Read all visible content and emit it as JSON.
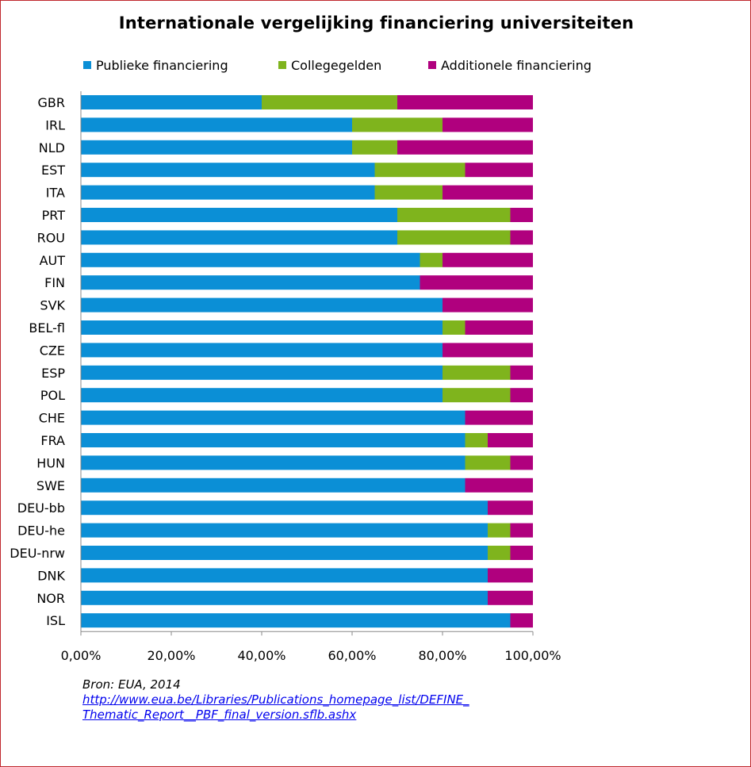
{
  "chart_data": {
    "type": "bar",
    "orientation": "horizontal",
    "stacked": true,
    "title": "Internationale vergelijking financiering universiteiten",
    "categories": [
      "GBR",
      "IRL",
      "NLD",
      "EST",
      "ITA",
      "PRT",
      "ROU",
      "AUT",
      "FIN",
      "SVK",
      "BEL-fl",
      "CZE",
      "ESP",
      "POL",
      "CHE",
      "FRA",
      "HUN",
      "SWE",
      "DEU-bb",
      "DEU-he",
      "DEU-nrw",
      "DNK",
      "NOR",
      "ISL"
    ],
    "series": [
      {
        "name": "Publieke financiering",
        "color": "#0b8fd6",
        "values": [
          40,
          60,
          60,
          65,
          65,
          70,
          70,
          75,
          75,
          80,
          80,
          80,
          80,
          80,
          85,
          85,
          85,
          85,
          90,
          90,
          90,
          90,
          90,
          95
        ]
      },
      {
        "name": "Collegegelden",
        "color": "#7fb41d",
        "values": [
          30,
          20,
          10,
          20,
          15,
          25,
          25,
          5,
          0,
          0,
          5,
          0,
          15,
          15,
          0,
          5,
          10,
          0,
          0,
          5,
          5,
          0,
          0,
          0
        ]
      },
      {
        "name": "Additionele financiering",
        "color": "#b0007e",
        "values": [
          30,
          20,
          30,
          15,
          20,
          5,
          5,
          20,
          25,
          20,
          15,
          20,
          5,
          5,
          15,
          10,
          5,
          15,
          10,
          5,
          5,
          10,
          10,
          5
        ]
      }
    ],
    "xlim": [
      0,
      100
    ],
    "xticks": [
      0,
      20,
      40,
      60,
      80,
      100
    ],
    "xtick_labels": [
      "0,00%",
      "20,00%",
      "40,00%",
      "60,00%",
      "80,00%",
      "100,00%"
    ],
    "legend_position": "top",
    "grid": false
  },
  "source": {
    "text": "Bron: EUA, 2014",
    "link_line1": "http://www.eua.be/Libraries/Publications_homepage_list/DEFINE_",
    "link_line2": "Thematic_Report__PBF_final_version.sflb.ashx"
  }
}
